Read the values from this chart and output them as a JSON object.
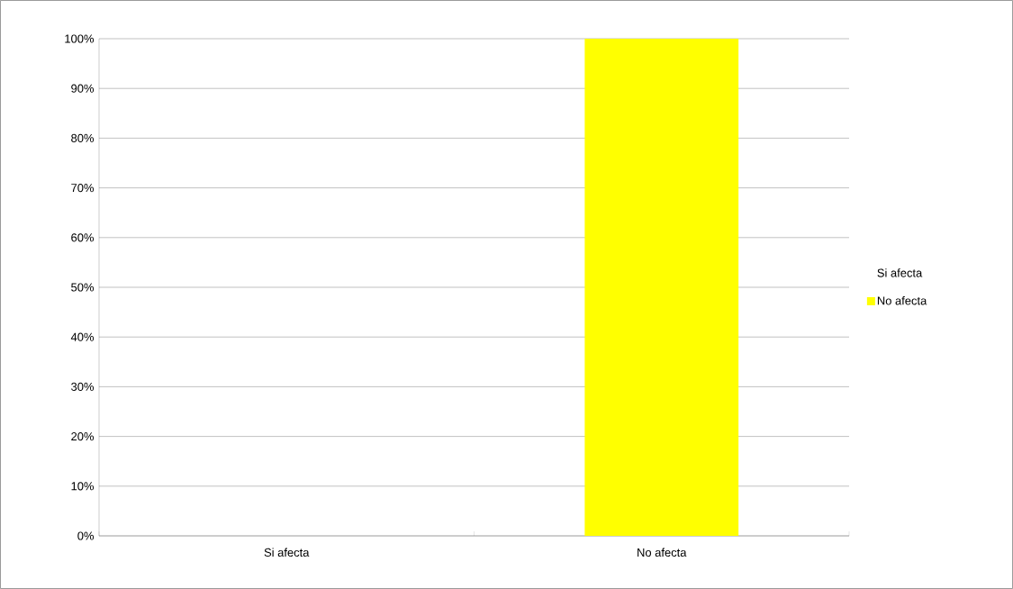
{
  "chart_data": {
    "type": "bar",
    "categories": [
      "Si afecta",
      "No afecta"
    ],
    "series": [
      {
        "name": "Si afecta",
        "values": [
          0,
          null
        ]
      },
      {
        "name": "No afecta",
        "color": "#ffff00",
        "values": [
          null,
          100
        ]
      }
    ],
    "ylim": [
      0,
      100
    ],
    "yticks": [
      {
        "value": 0,
        "label": "0%"
      },
      {
        "value": 10,
        "label": "10%"
      },
      {
        "value": 20,
        "label": "20%"
      },
      {
        "value": 30,
        "label": "30%"
      },
      {
        "value": 40,
        "label": "40%"
      },
      {
        "value": 50,
        "label": "50%"
      },
      {
        "value": 60,
        "label": "60%"
      },
      {
        "value": 70,
        "label": "70%"
      },
      {
        "value": 80,
        "label": "80%"
      },
      {
        "value": 90,
        "label": "90%"
      },
      {
        "value": 100,
        "label": "100%"
      }
    ],
    "grid": "y",
    "legend": "right"
  }
}
